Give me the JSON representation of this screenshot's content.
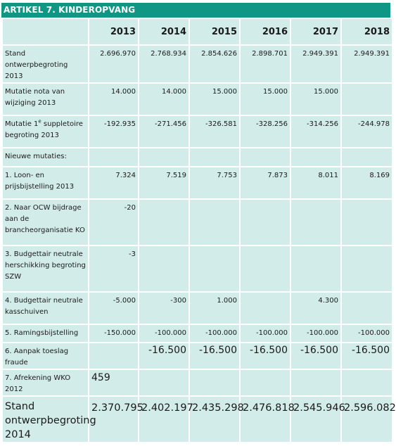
{
  "title": "ARTIKEL 7. KINDEROPVANG",
  "years": [
    "2013",
    "2014",
    "2015",
    "2016",
    "2017",
    "2018"
  ],
  "rows": [
    {
      "label": "Stand ontwerpbegroting 2013",
      "values": [
        "2.696.970",
        "2.768.934",
        "2.854.626",
        "2.898.701",
        "2.949.391",
        "2.949.391"
      ]
    },
    {
      "label": "Mutatie nota van wijziging 2013",
      "values": [
        "14.000",
        "14.000",
        "15.000",
        "15.000",
        "15.000",
        ""
      ]
    },
    {
      "label_pre": "Mutatie 1",
      "label_sup": "e",
      "label_post": " suppletoire begroting 2013",
      "values": [
        "-192.935",
        "-271.456",
        "-326.581",
        "-328.256",
        "-314.256",
        "-244.978"
      ]
    },
    {
      "label": "Nieuwe mutaties:",
      "values": [
        "",
        "",
        "",
        "",
        "",
        ""
      ]
    },
    {
      "label": "1. Loon- en prijsbijstelling 2013",
      "values": [
        "7.324",
        "7.519",
        "7.753",
        "7.873",
        "8.011",
        "8.169"
      ]
    },
    {
      "label": "2. Naar OCW bijdrage aan de brancheorganisatie KO",
      "values": [
        "-20",
        "",
        "",
        "",
        "",
        ""
      ]
    },
    {
      "label": "3. Budgettair neutrale herschikking begroting SZW",
      "values": [
        "-3",
        "",
        "",
        "",
        "",
        ""
      ]
    },
    {
      "label": "4. Budgettair neutrale kasschuiven",
      "values": [
        "-5.000",
        "-300",
        "1.000",
        "",
        "4.300",
        ""
      ]
    },
    {
      "label": "5. Ramingsbijstelling",
      "values": [
        "-150.000",
        "-100.000",
        "-100.000",
        "-100.000",
        "-100.000",
        "-100.000"
      ]
    },
    {
      "label": "6. Aanpak toeslag fraude",
      "values": [
        "",
        "-16.500",
        "-16.500",
        "-16.500",
        "-16.500",
        "-16.500"
      ]
    },
    {
      "label": "7. Afrekening WKO 2012",
      "values": [
        "459",
        "",
        "",
        "",
        "",
        ""
      ]
    },
    {
      "label": "Stand ontwerpbegroting 2014",
      "values": [
        "2.370.795",
        "2.402.197",
        "2.435.298",
        "2.476.818",
        "2.545.946",
        "2.596.082"
      ]
    }
  ]
}
